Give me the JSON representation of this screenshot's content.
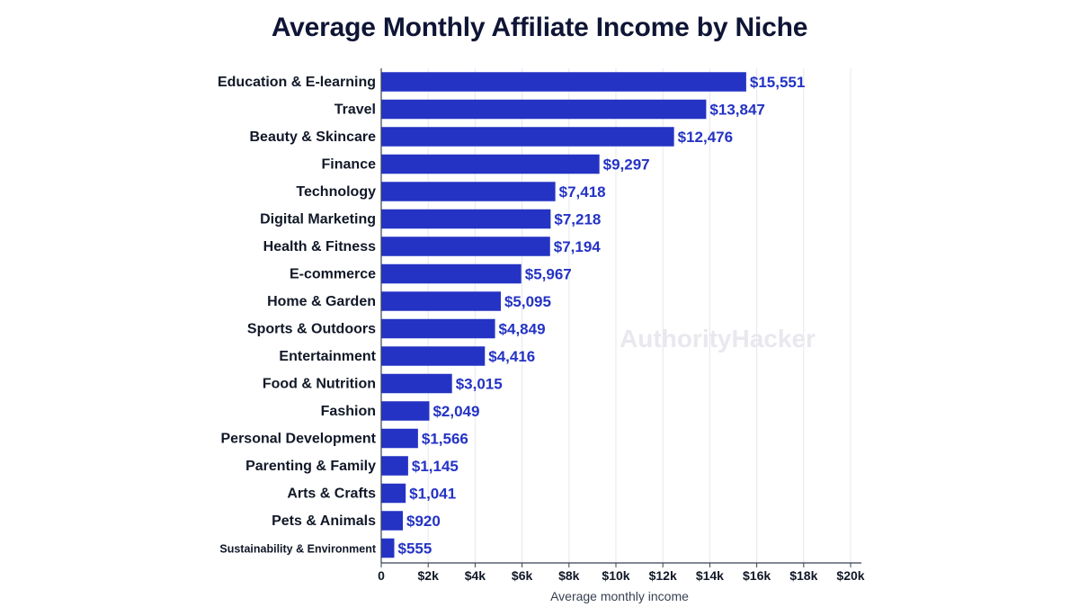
{
  "chart_data": {
    "type": "bar",
    "orientation": "horizontal",
    "title": "Average Monthly Affiliate Income by Niche",
    "xlabel": "Average monthly income",
    "ylabel": "",
    "xlim": [
      0,
      20000
    ],
    "grid": true,
    "bar_color": "#2433c4",
    "label_color": "#2433c4",
    "categories": [
      "Education & E-learning",
      "Travel",
      "Beauty & Skincare",
      "Finance",
      "Technology",
      "Digital Marketing",
      "Health & Fitness",
      "E-commerce",
      "Home & Garden",
      "Sports & Outdoors",
      "Entertainment",
      "Food & Nutrition",
      "Fashion",
      "Personal Development",
      "Parenting & Family",
      "Arts & Crafts",
      "Pets & Animals",
      "Sustainability & Environment"
    ],
    "values": [
      15551,
      13847,
      12476,
      9297,
      7418,
      7218,
      7194,
      5967,
      5095,
      4849,
      4416,
      3015,
      2049,
      1566,
      1145,
      1041,
      920,
      555
    ],
    "value_labels": [
      "$15,551",
      "$13,847",
      "$12,476",
      "$9,297",
      "$7,418",
      "$7,218",
      "$7,194",
      "$5,967",
      "$5,095",
      "$4,849",
      "$4,416",
      "$3,015",
      "$2,049",
      "$1,566",
      "$1,145",
      "$1,041",
      "$920",
      "$555"
    ],
    "x_ticks": [
      0,
      2000,
      4000,
      6000,
      8000,
      10000,
      12000,
      14000,
      16000,
      18000,
      20000
    ],
    "x_tick_labels": [
      "0",
      "$2k",
      "$4k",
      "$6k",
      "$8k",
      "$10k",
      "$12k",
      "$14k",
      "$16k",
      "$18k",
      "$20k"
    ],
    "watermark": "AuthorityHacker"
  }
}
